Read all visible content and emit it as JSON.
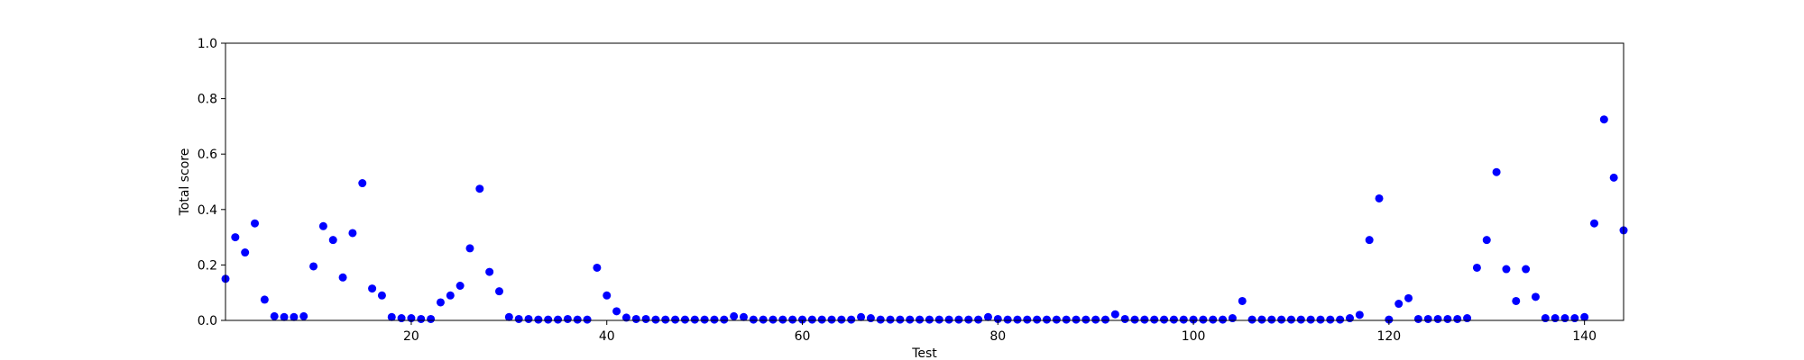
{
  "chart_data": {
    "type": "scatter",
    "title": "",
    "xlabel": "Test",
    "ylabel": "Total score",
    "xlim": [
      1,
      144
    ],
    "ylim": [
      0,
      1.0
    ],
    "x_ticks": [
      20,
      40,
      60,
      80,
      100,
      120,
      140
    ],
    "x_tick_labels": [
      "20",
      "40",
      "60",
      "80",
      "100",
      "120",
      "140"
    ],
    "y_ticks": [
      0,
      0.2,
      0.4,
      0.6,
      0.8,
      1.0
    ],
    "y_tick_labels": [
      "0.0",
      "0.2",
      "0.4",
      "0.6",
      "0.8",
      "1.0"
    ],
    "grid": false,
    "marker_color": "#0000ff",
    "series": [
      {
        "x": [
          1,
          2,
          3,
          4,
          5,
          6,
          7,
          8,
          9,
          10,
          11,
          12,
          13,
          14,
          15,
          16,
          17,
          18,
          19,
          20,
          21,
          22,
          23,
          24,
          25,
          26,
          27,
          28,
          29,
          30,
          31,
          32,
          33,
          34,
          35,
          36,
          37,
          38,
          39,
          40,
          41,
          42,
          43,
          44,
          45,
          46,
          47,
          48,
          49,
          50,
          51,
          52,
          53,
          54,
          55,
          56,
          57,
          58,
          59,
          60,
          61,
          62,
          63,
          64,
          65,
          66,
          67,
          68,
          69,
          70,
          71,
          72,
          73,
          74,
          75,
          76,
          77,
          78,
          79,
          80,
          81,
          82,
          83,
          84,
          85,
          86,
          87,
          88,
          89,
          90,
          91,
          92,
          93,
          94,
          95,
          96,
          97,
          98,
          99,
          100,
          101,
          102,
          103,
          104,
          105,
          106,
          107,
          108,
          109,
          110,
          111,
          112,
          113,
          114,
          115,
          116,
          117,
          118,
          119,
          120,
          121,
          122,
          123,
          124,
          125,
          126,
          127,
          128,
          129,
          130,
          131,
          132,
          133,
          134,
          135,
          136,
          137,
          138,
          139,
          140,
          141,
          142,
          143,
          144
        ],
        "y": [
          0.15,
          0.3,
          0.245,
          0.35,
          0.075,
          0.015,
          0.012,
          0.012,
          0.015,
          0.195,
          0.34,
          0.29,
          0.155,
          0.315,
          0.495,
          0.115,
          0.09,
          0.012,
          0.008,
          0.008,
          0.005,
          0.005,
          0.065,
          0.09,
          0.125,
          0.26,
          0.475,
          0.175,
          0.105,
          0.012,
          0.005,
          0.005,
          0.003,
          0.003,
          0.003,
          0.005,
          0.003,
          0.003,
          0.19,
          0.09,
          0.033,
          0.01,
          0.005,
          0.005,
          0.003,
          0.003,
          0.003,
          0.003,
          0.003,
          0.003,
          0.003,
          0.003,
          0.015,
          0.012,
          0.003,
          0.003,
          0.003,
          0.003,
          0.003,
          0.003,
          0.003,
          0.003,
          0.003,
          0.003,
          0.003,
          0.012,
          0.008,
          0.003,
          0.003,
          0.003,
          0.003,
          0.003,
          0.003,
          0.003,
          0.003,
          0.003,
          0.003,
          0.003,
          0.012,
          0.005,
          0.003,
          0.003,
          0.003,
          0.003,
          0.003,
          0.003,
          0.003,
          0.003,
          0.003,
          0.003,
          0.003,
          0.022,
          0.005,
          0.003,
          0.003,
          0.003,
          0.003,
          0.003,
          0.003,
          0.003,
          0.003,
          0.003,
          0.003,
          0.008,
          0.07,
          0.003,
          0.003,
          0.003,
          0.003,
          0.003,
          0.003,
          0.003,
          0.003,
          0.003,
          0.003,
          0.008,
          0.02,
          0.29,
          0.44,
          0.003,
          0.06,
          0.08,
          0.005,
          0.005,
          0.005,
          0.005,
          0.005,
          0.008,
          0.19,
          0.29,
          0.535,
          0.185,
          0.07,
          0.185,
          0.085,
          0.008,
          0.008,
          0.008,
          0.008,
          0.012,
          0.35,
          0.725,
          0.515,
          0.325
        ]
      }
    ]
  }
}
